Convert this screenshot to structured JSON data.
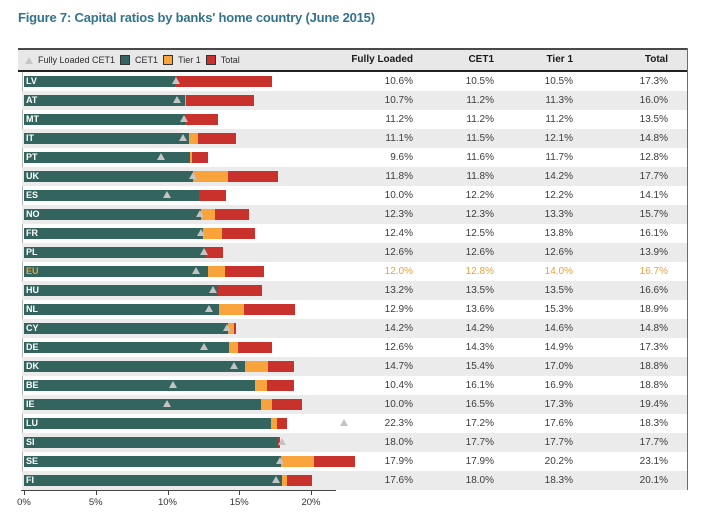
{
  "title": "Figure 7: Capital ratios by banks' home country (June 2015)",
  "legend": {
    "fully_loaded_label": "Fully Loaded CET1",
    "cet1_label": "CET1",
    "tier1_label": "Tier 1",
    "total_label": "Total"
  },
  "columns": [
    "Fully Loaded",
    "CET1",
    "Tier 1",
    "Total"
  ],
  "colors": {
    "title_text": "#33748C",
    "cet1_bar": "#33655E",
    "tier1_bar": "#F8A33B",
    "total_bar": "#C9312C",
    "marker": "#C4C4C4",
    "highlight_text": "#E8A33D",
    "stripe": "#EBEBEB",
    "header_bg": "#E8E8E8"
  },
  "x_axis": {
    "ticks": [
      {
        "value": 0,
        "label": "0%"
      },
      {
        "value": 5,
        "label": "5%"
      },
      {
        "value": 10,
        "label": "10%"
      },
      {
        "value": 15,
        "label": "15%"
      },
      {
        "value": 20,
        "label": "20%"
      }
    ]
  },
  "chart_data": {
    "type": "bar",
    "orientation": "horizontal",
    "stacked": true,
    "title": "Figure 7: Capital ratios by banks' home country (June 2015)",
    "unit": "%",
    "xlim": [
      0,
      22.5
    ],
    "grid": false,
    "legend_position": "top-left",
    "highlighted_category": "EU",
    "categories": [
      "LV",
      "AT",
      "MT",
      "IT",
      "PT",
      "UK",
      "ES",
      "NO",
      "FR",
      "PL",
      "EU",
      "HU",
      "NL",
      "CY",
      "DE",
      "DK",
      "BE",
      "IE",
      "LU",
      "SI",
      "SE",
      "FI"
    ],
    "series": [
      {
        "name": "Fully Loaded CET1",
        "style": "triangle-marker",
        "values": [
          10.6,
          10.7,
          11.2,
          11.1,
          9.6,
          11.8,
          10.0,
          12.3,
          12.4,
          12.6,
          12.0,
          13.2,
          12.9,
          14.2,
          12.6,
          14.7,
          10.4,
          10.0,
          22.3,
          18.0,
          17.9,
          17.6
        ]
      },
      {
        "name": "CET1",
        "style": "bar",
        "values": [
          10.5,
          11.2,
          11.2,
          11.5,
          11.6,
          11.8,
          12.2,
          12.3,
          12.5,
          12.6,
          12.8,
          13.5,
          13.6,
          14.2,
          14.3,
          15.4,
          16.1,
          16.5,
          17.2,
          17.7,
          17.9,
          18.0
        ]
      },
      {
        "name": "Tier 1",
        "style": "bar",
        "values": [
          10.5,
          11.3,
          11.2,
          12.1,
          11.7,
          14.2,
          12.2,
          13.3,
          13.8,
          12.6,
          14.0,
          13.5,
          15.3,
          14.6,
          14.9,
          17.0,
          16.9,
          17.3,
          17.6,
          17.7,
          20.2,
          18.3
        ]
      },
      {
        "name": "Total",
        "style": "bar",
        "values": [
          17.3,
          16.0,
          13.5,
          14.8,
          12.8,
          17.7,
          14.1,
          15.7,
          16.1,
          13.9,
          16.7,
          16.6,
          18.9,
          14.8,
          17.3,
          18.8,
          18.8,
          19.4,
          18.3,
          17.7,
          23.1,
          20.1
        ]
      }
    ]
  }
}
